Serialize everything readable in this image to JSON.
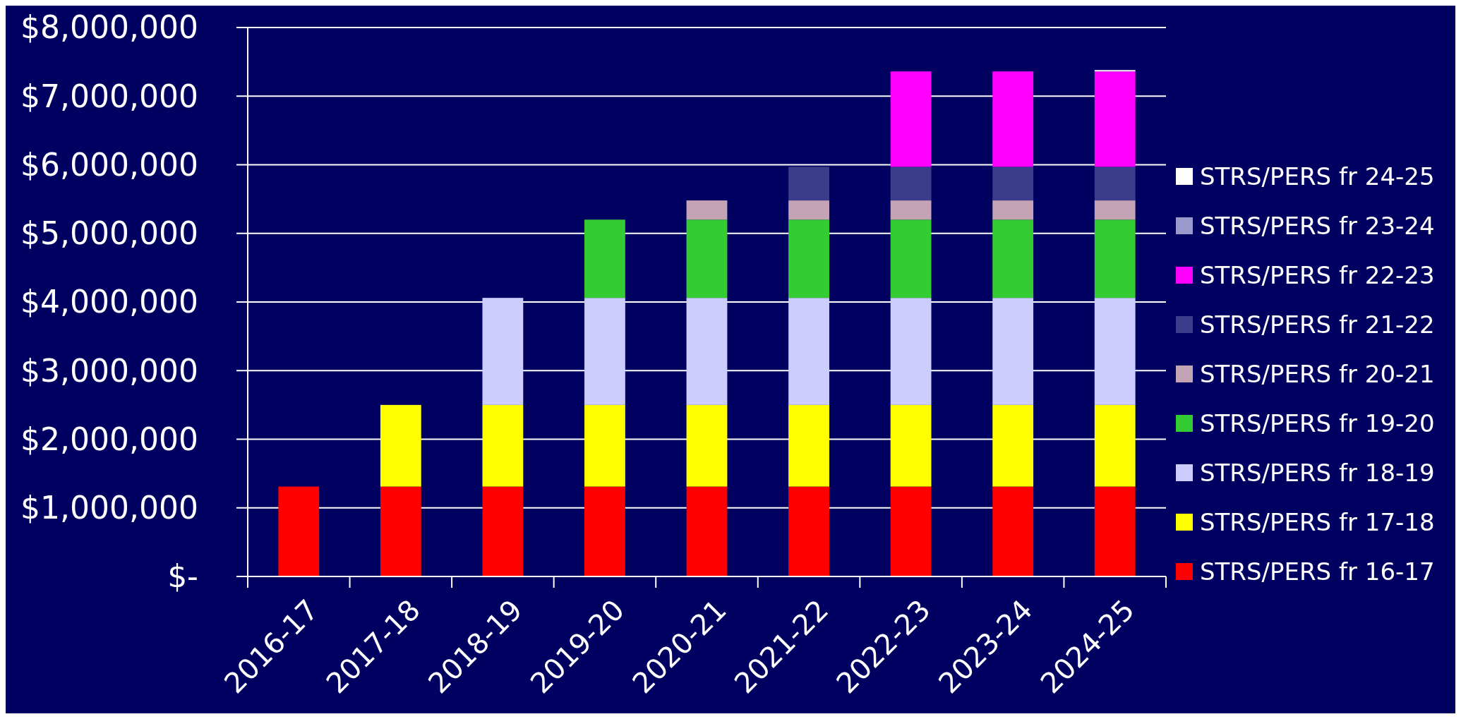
{
  "chart_data": {
    "type": "bar",
    "stacked": true,
    "categories": [
      "2016-17",
      "2017-18",
      "2018-19",
      "2019-20",
      "2020-21",
      "2021-22",
      "2022-23",
      "2023-24",
      "2024-25"
    ],
    "series": [
      {
        "name": "STRS/PERS fr 16-17",
        "color": "#ff0000",
        "values": [
          1310000,
          1310000,
          1310000,
          1310000,
          1310000,
          1310000,
          1310000,
          1310000,
          1310000
        ]
      },
      {
        "name": "STRS/PERS fr 17-18",
        "color": "#ffff00",
        "values": [
          null,
          1190000,
          1190000,
          1190000,
          1190000,
          1190000,
          1190000,
          1190000,
          1190000
        ]
      },
      {
        "name": "STRS/PERS fr 18-19",
        "color": "#ccccff",
        "values": [
          null,
          null,
          1560000,
          1560000,
          1560000,
          1560000,
          1560000,
          1560000,
          1560000
        ]
      },
      {
        "name": "STRS/PERS fr 19-20",
        "color": "#33cc33",
        "values": [
          null,
          null,
          null,
          1140000,
          1140000,
          1140000,
          1140000,
          1140000,
          1140000
        ]
      },
      {
        "name": "STRS/PERS fr 20-21",
        "color": "#c4a4b4",
        "values": [
          null,
          null,
          null,
          null,
          280000,
          280000,
          280000,
          280000,
          280000
        ]
      },
      {
        "name": "STRS/PERS fr 21-22",
        "color": "#3c3c8c",
        "values": [
          null,
          null,
          null,
          null,
          null,
          490000,
          490000,
          490000,
          490000
        ]
      },
      {
        "name": "STRS/PERS fr 22-23",
        "color": "#ff00ff",
        "values": [
          null,
          null,
          null,
          null,
          null,
          null,
          1390000,
          1390000,
          1390000
        ]
      },
      {
        "name": "STRS/PERS fr 23-24",
        "color": "#9999cc",
        "values": [
          null,
          null,
          null,
          null,
          null,
          null,
          null,
          null,
          null
        ]
      },
      {
        "name": "STRS/PERS fr 24-25",
        "color": "#ffffff",
        "values": [
          null,
          null,
          null,
          null,
          null,
          null,
          null,
          null,
          20000
        ]
      }
    ],
    "ylim": [
      0,
      8000000
    ],
    "yticks": [
      {
        "value": 0,
        "label": "$-"
      },
      {
        "value": 1000000,
        "label": "$1,000,000"
      },
      {
        "value": 2000000,
        "label": "$2,000,000"
      },
      {
        "value": 3000000,
        "label": "$3,000,000"
      },
      {
        "value": 4000000,
        "label": "$4,000,000"
      },
      {
        "value": 5000000,
        "label": "$5,000,000"
      },
      {
        "value": 6000000,
        "label": "$6,000,000"
      },
      {
        "value": 7000000,
        "label": "$7,000,000"
      },
      {
        "value": 8000000,
        "label": "$8,000,000"
      }
    ],
    "grid": "y",
    "legend": "right"
  }
}
